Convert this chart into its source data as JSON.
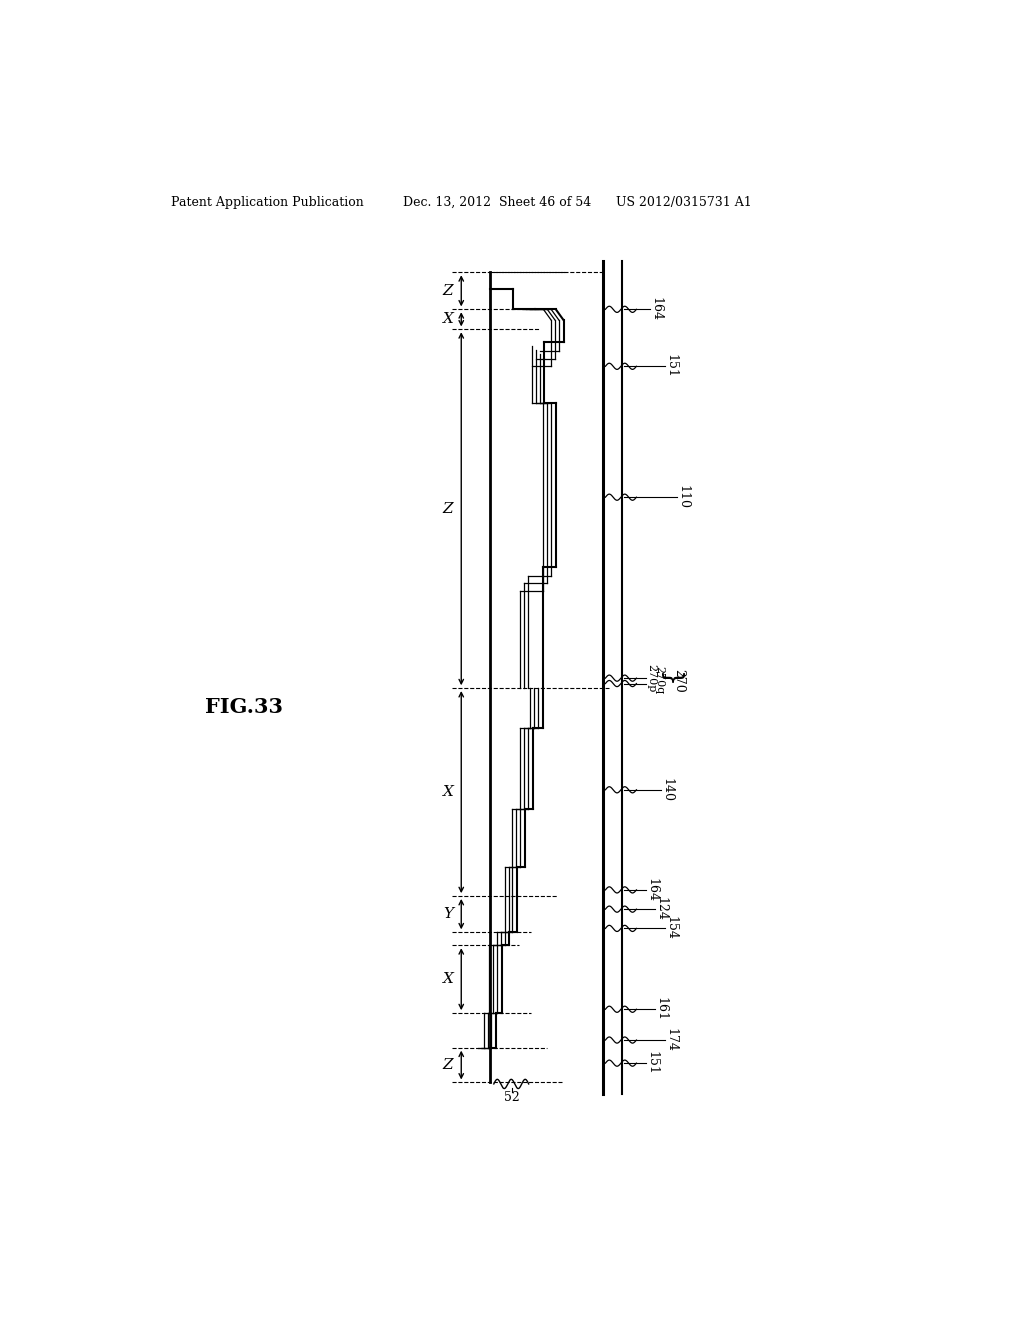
{
  "bg_color": "#ffffff",
  "header_left": "Patent Application Publication",
  "header_mid": "Dec. 13, 2012  Sheet 46 of 54",
  "header_right": "US 2012/0315731 A1",
  "fig_label": "FIG.33"
}
